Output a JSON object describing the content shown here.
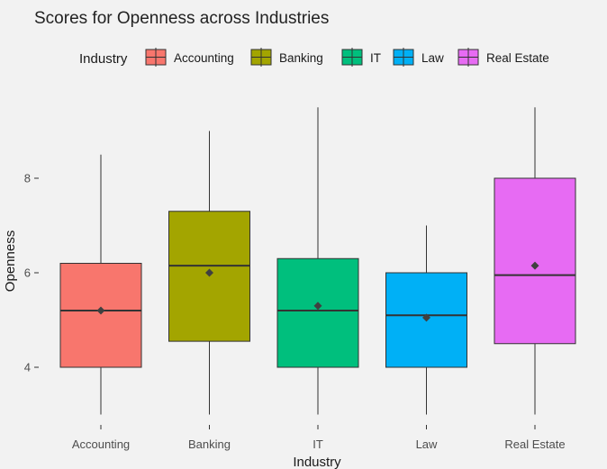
{
  "chart_data": {
    "type": "box",
    "title": "Scores for Openness across Industries",
    "xlabel": "Industry",
    "ylabel": "Openness",
    "legend_title": "Industry",
    "legend_position": "top",
    "grid": false,
    "ylim": [
      2.6,
      10.0
    ],
    "yticks": [
      4,
      6,
      8
    ],
    "ytick_labels": [
      "4",
      "6",
      "8"
    ],
    "categories": [
      "Accounting",
      "Banking",
      "IT",
      "Law",
      "Real Estate"
    ],
    "colors": [
      "#F8766D",
      "#A3A500",
      "#00BF7D",
      "#00B0F6",
      "#E76BF3"
    ],
    "boxes": [
      {
        "min": 3.0,
        "q1": 4.0,
        "median": 5.2,
        "q3": 6.2,
        "max": 8.5,
        "mean": 5.2
      },
      {
        "min": 3.0,
        "q1": 4.55,
        "median": 6.15,
        "q3": 7.3,
        "max": 9.0,
        "mean": 6.0
      },
      {
        "min": 3.0,
        "q1": 4.0,
        "median": 5.2,
        "q3": 6.3,
        "max": 9.5,
        "mean": 5.3
      },
      {
        "min": 3.0,
        "q1": 4.0,
        "median": 5.1,
        "q3": 6.0,
        "max": 7.0,
        "mean": 5.05
      },
      {
        "min": 3.0,
        "q1": 4.5,
        "median": 5.95,
        "q3": 8.0,
        "max": 9.5,
        "mean": 6.15
      }
    ]
  }
}
